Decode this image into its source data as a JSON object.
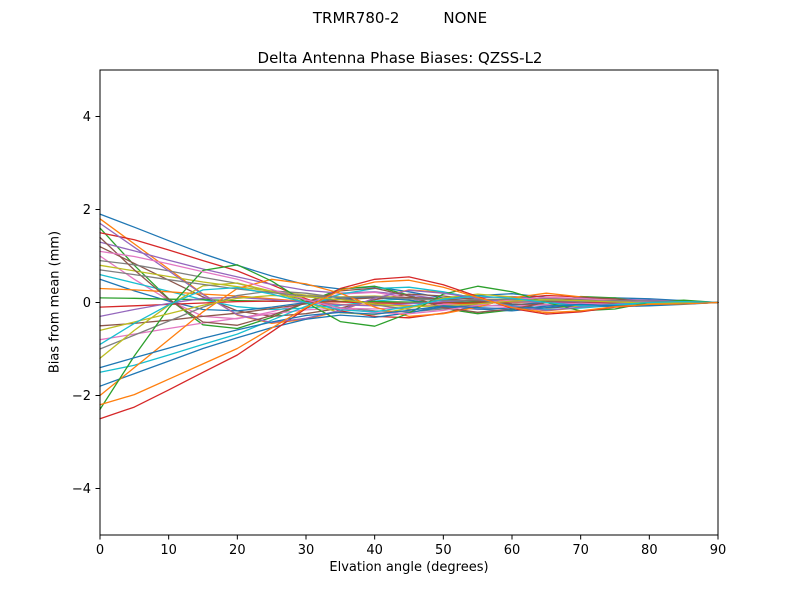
{
  "figure": {
    "suptitle_left": "TRMR780-2",
    "suptitle_right": "NONE",
    "title": "Delta Antenna Phase Biases: QZSS-L2",
    "xlabel": "Elvation angle (degrees)",
    "ylabel": "Bias from mean (mm)"
  },
  "chart_data": {
    "type": "line",
    "title": "Delta Antenna Phase Biases: QZSS-L2",
    "suptitle": "TRMR780-2    NONE",
    "xlabel": "Elvation angle (degrees)",
    "ylabel": "Bias from mean (mm)",
    "xlim": [
      0,
      90
    ],
    "ylim": [
      -5,
      5
    ],
    "xticks": [
      0,
      10,
      20,
      30,
      40,
      50,
      60,
      70,
      80,
      90
    ],
    "yticks": [
      -4,
      -2,
      0,
      2,
      4
    ],
    "grid": false,
    "legend": null,
    "x": [
      0,
      5,
      10,
      15,
      20,
      25,
      30,
      35,
      40,
      45,
      50,
      55,
      60,
      65,
      70,
      75,
      80,
      85,
      90
    ],
    "series": [
      {
        "name": "line-01",
        "color": "#1f77b4",
        "values": [
          1.9,
          1.62,
          1.33,
          1.05,
          0.8,
          0.57,
          0.38,
          0.29,
          0.34,
          0.23,
          0.1,
          0.15,
          0.19,
          0.11,
          0.06,
          0.1,
          0.08,
          0.04,
          0
        ]
      },
      {
        "name": "line-02",
        "color": "#ff7f0e",
        "values": [
          1.8,
          1.26,
          0.72,
          0.18,
          -0.27,
          -0.45,
          -0.36,
          -0.18,
          0.09,
          0.27,
          0.22,
          0.09,
          -0.09,
          -0.18,
          -0.11,
          -0.04,
          0.04,
          0.02,
          0
        ]
      },
      {
        "name": "line-03",
        "color": "#2ca02c",
        "values": [
          1.6,
          0.8,
          0.08,
          -0.48,
          -0.56,
          -0.32,
          0,
          0.29,
          0.35,
          0.16,
          -0.13,
          -0.24,
          -0.16,
          0,
          0.13,
          0.1,
          0,
          -0.03,
          0
        ]
      },
      {
        "name": "line-04",
        "color": "#d62728",
        "values": [
          1.5,
          1.35,
          1.13,
          0.9,
          0.68,
          0.38,
          0.08,
          -0.18,
          -0.3,
          -0.33,
          -0.23,
          -0.08,
          0.08,
          0.15,
          0.12,
          0.06,
          0.03,
          0.02,
          0
        ]
      },
      {
        "name": "line-05",
        "color": "#9467bd",
        "values": [
          1.3,
          1.11,
          0.91,
          0.72,
          0.55,
          0.39,
          0.26,
          0.2,
          0.23,
          0.16,
          0.07,
          0.1,
          0.13,
          0.08,
          0.04,
          0.07,
          0.05,
          0.03,
          0
        ]
      },
      {
        "name": "line-06",
        "color": "#8c564b",
        "values": [
          1.2,
          0.84,
          0.48,
          0.12,
          -0.18,
          -0.3,
          -0.24,
          -0.12,
          0.06,
          0.18,
          0.14,
          0.06,
          -0.06,
          -0.12,
          -0.07,
          -0.02,
          0.02,
          0.01,
          0
        ]
      },
      {
        "name": "line-07",
        "color": "#e377c2",
        "values": [
          1.0,
          0.5,
          0.05,
          -0.3,
          -0.35,
          -0.2,
          0,
          0.18,
          0.22,
          0.1,
          -0.08,
          -0.15,
          -0.1,
          0,
          0.08,
          0.06,
          0,
          -0.02,
          0
        ]
      },
      {
        "name": "line-08",
        "color": "#7f7f7f",
        "values": [
          0.9,
          0.81,
          0.68,
          0.54,
          0.41,
          0.23,
          0.05,
          -0.11,
          -0.18,
          -0.2,
          -0.14,
          -0.05,
          0.05,
          0.09,
          0.07,
          0.04,
          0.02,
          0.01,
          0
        ]
      },
      {
        "name": "line-09",
        "color": "#bcbd22",
        "values": [
          0.8,
          0.68,
          0.56,
          0.44,
          0.34,
          0.24,
          0.16,
          0.12,
          0.14,
          0.1,
          0.04,
          0.06,
          0.08,
          0.05,
          0.02,
          0.04,
          0.03,
          0.02,
          0
        ]
      },
      {
        "name": "line-10",
        "color": "#17becf",
        "values": [
          0.6,
          0.42,
          0.24,
          0.06,
          -0.09,
          -0.15,
          -0.12,
          -0.06,
          0.03,
          0.09,
          0.07,
          0.03,
          -0.03,
          -0.06,
          -0.04,
          -0.01,
          0.01,
          0.01,
          0
        ]
      },
      {
        "name": "line-11",
        "color": "#1f77b4",
        "values": [
          0.5,
          0.25,
          0.03,
          -0.15,
          -0.18,
          -0.1,
          0,
          0.09,
          0.11,
          0.05,
          -0.04,
          -0.08,
          -0.05,
          0,
          0.04,
          0.03,
          0,
          -0.01,
          0
        ]
      },
      {
        "name": "line-12",
        "color": "#ff7f0e",
        "values": [
          0.3,
          0.27,
          0.23,
          0.18,
          0.14,
          0.08,
          0.02,
          -0.04,
          -0.06,
          -0.07,
          -0.05,
          -0.02,
          0.02,
          0.03,
          0.02,
          0.01,
          0.01,
          0,
          0
        ]
      },
      {
        "name": "line-13",
        "color": "#2ca02c",
        "values": [
          0.1,
          0.09,
          0.07,
          0.06,
          0.04,
          0.03,
          0.02,
          0.02,
          0.02,
          0.01,
          0.01,
          0.01,
          0.01,
          0.01,
          0,
          0.01,
          0,
          0,
          0
        ]
      },
      {
        "name": "line-14",
        "color": "#d62728",
        "values": [
          -0.1,
          -0.07,
          -0.04,
          -0.01,
          0.02,
          0.03,
          0.02,
          0.01,
          -0.01,
          -0.02,
          -0.01,
          -0.01,
          0.01,
          0.01,
          0.01,
          0,
          0,
          0,
          0
        ]
      },
      {
        "name": "line-15",
        "color": "#9467bd",
        "values": [
          -0.3,
          -0.15,
          -0.02,
          0.09,
          0.11,
          0.06,
          0,
          -0.05,
          -0.07,
          -0.03,
          0.02,
          0.05,
          0.03,
          0,
          -0.02,
          -0.02,
          0,
          0.01,
          0
        ]
      },
      {
        "name": "line-16",
        "color": "#8c564b",
        "values": [
          -0.5,
          -0.45,
          -0.38,
          -0.3,
          -0.23,
          -0.13,
          -0.03,
          0.06,
          0.1,
          0.11,
          0.08,
          0.03,
          -0.03,
          -0.05,
          -0.04,
          -0.02,
          -0.01,
          -0.01,
          0
        ]
      },
      {
        "name": "line-17",
        "color": "#e377c2",
        "values": [
          -0.8,
          -0.68,
          -0.56,
          -0.44,
          -0.34,
          -0.24,
          -0.16,
          -0.12,
          -0.14,
          -0.1,
          -0.04,
          -0.06,
          -0.08,
          -0.05,
          -0.02,
          -0.04,
          -0.03,
          -0.02,
          0
        ]
      },
      {
        "name": "line-18",
        "color": "#7f7f7f",
        "values": [
          -1.0,
          -0.7,
          -0.4,
          -0.1,
          0.15,
          0.25,
          0.2,
          0.1,
          -0.05,
          -0.15,
          -0.12,
          -0.05,
          0.05,
          0.1,
          0.06,
          0.02,
          -0.02,
          -0.01,
          0
        ]
      },
      {
        "name": "line-19",
        "color": "#bcbd22",
        "values": [
          -1.2,
          -0.6,
          -0.06,
          0.36,
          0.42,
          0.24,
          0,
          -0.22,
          -0.26,
          -0.12,
          0.1,
          0.18,
          0.12,
          0,
          -0.1,
          -0.07,
          0,
          0.02,
          0
        ]
      },
      {
        "name": "line-20",
        "color": "#17becf",
        "values": [
          -1.5,
          -1.35,
          -1.13,
          -0.9,
          -0.68,
          -0.38,
          -0.08,
          0.18,
          0.3,
          0.33,
          0.23,
          0.08,
          -0.08,
          -0.15,
          -0.12,
          -0.06,
          -0.03,
          -0.02,
          0
        ]
      },
      {
        "name": "line-21",
        "color": "#1f77b4",
        "values": [
          -1.8,
          -1.53,
          -1.26,
          -0.99,
          -0.76,
          -0.54,
          -0.36,
          -0.27,
          -0.32,
          -0.22,
          -0.09,
          -0.14,
          -0.18,
          -0.11,
          -0.05,
          -0.09,
          -0.07,
          -0.04,
          0
        ]
      },
      {
        "name": "line-22",
        "color": "#ff7f0e",
        "values": [
          -2.0,
          -1.4,
          -0.8,
          -0.2,
          0.3,
          0.5,
          0.4,
          0.2,
          -0.1,
          -0.3,
          -0.24,
          -0.1,
          0.1,
          0.2,
          0.12,
          0.04,
          -0.04,
          -0.02,
          0
        ]
      },
      {
        "name": "line-23",
        "color": "#2ca02c",
        "values": [
          -2.3,
          -1.15,
          -0.12,
          0.69,
          0.81,
          0.46,
          0,
          -0.41,
          -0.51,
          -0.23,
          0.18,
          0.35,
          0.23,
          0,
          -0.18,
          -0.14,
          0,
          0.05,
          0
        ]
      },
      {
        "name": "line-24",
        "color": "#d62728",
        "values": [
          -2.5,
          -2.25,
          -1.88,
          -1.5,
          -1.13,
          -0.63,
          -0.13,
          0.3,
          0.5,
          0.55,
          0.38,
          0.13,
          -0.13,
          -0.25,
          -0.2,
          -0.1,
          -0.05,
          -0.03,
          0
        ]
      },
      {
        "name": "line-25",
        "color": "#9467bd",
        "values": [
          1.7,
          1.19,
          0.68,
          0.17,
          -0.26,
          -0.43,
          -0.34,
          -0.17,
          0.09,
          0.26,
          0.2,
          0.09,
          -0.09,
          -0.17,
          -0.1,
          -0.03,
          0.03,
          0.02,
          0
        ]
      },
      {
        "name": "line-26",
        "color": "#8c564b",
        "values": [
          1.4,
          0.7,
          0.07,
          -0.42,
          -0.49,
          -0.28,
          0,
          0.25,
          0.31,
          0.14,
          -0.11,
          -0.21,
          -0.14,
          0,
          0.11,
          0.08,
          0,
          -0.03,
          0
        ]
      },
      {
        "name": "line-27",
        "color": "#e377c2",
        "values": [
          1.1,
          0.99,
          0.83,
          0.66,
          0.5,
          0.28,
          0.06,
          -0.13,
          -0.22,
          -0.24,
          -0.17,
          -0.06,
          0.06,
          0.11,
          0.09,
          0.04,
          0.02,
          0.01,
          0
        ]
      },
      {
        "name": "line-28",
        "color": "#7f7f7f",
        "values": [
          0.7,
          0.6,
          0.49,
          0.39,
          0.29,
          0.21,
          0.14,
          0.11,
          0.13,
          0.08,
          0.04,
          0.06,
          0.07,
          0.04,
          0.02,
          0.04,
          0.03,
          0.01,
          0
        ]
      },
      {
        "name": "line-29",
        "color": "#bcbd22",
        "values": [
          -0.6,
          -0.42,
          -0.24,
          -0.06,
          0.09,
          0.15,
          0.12,
          0.06,
          -0.03,
          -0.09,
          -0.07,
          -0.03,
          0.03,
          0.06,
          0.04,
          0.01,
          -0.01,
          -0.01,
          0
        ]
      },
      {
        "name": "line-30",
        "color": "#17becf",
        "values": [
          -0.9,
          -0.45,
          -0.05,
          0.27,
          0.32,
          0.18,
          0,
          -0.16,
          -0.2,
          -0.09,
          0.07,
          0.14,
          0.09,
          0,
          -0.07,
          -0.05,
          0,
          0.02,
          0
        ]
      },
      {
        "name": "line-31",
        "color": "#1f77b4",
        "values": [
          -1.4,
          -1.19,
          -0.98,
          -0.77,
          -0.59,
          -0.42,
          -0.28,
          -0.21,
          -0.25,
          -0.17,
          -0.07,
          -0.11,
          -0.14,
          -0.08,
          -0.04,
          -0.07,
          -0.06,
          -0.03,
          0
        ]
      },
      {
        "name": "line-32",
        "color": "#ff7f0e",
        "values": [
          -2.2,
          -1.98,
          -1.65,
          -1.32,
          -0.99,
          -0.55,
          -0.11,
          0.26,
          0.44,
          0.48,
          0.33,
          0.11,
          -0.11,
          -0.22,
          -0.18,
          -0.09,
          -0.04,
          -0.03,
          0
        ]
      }
    ]
  }
}
